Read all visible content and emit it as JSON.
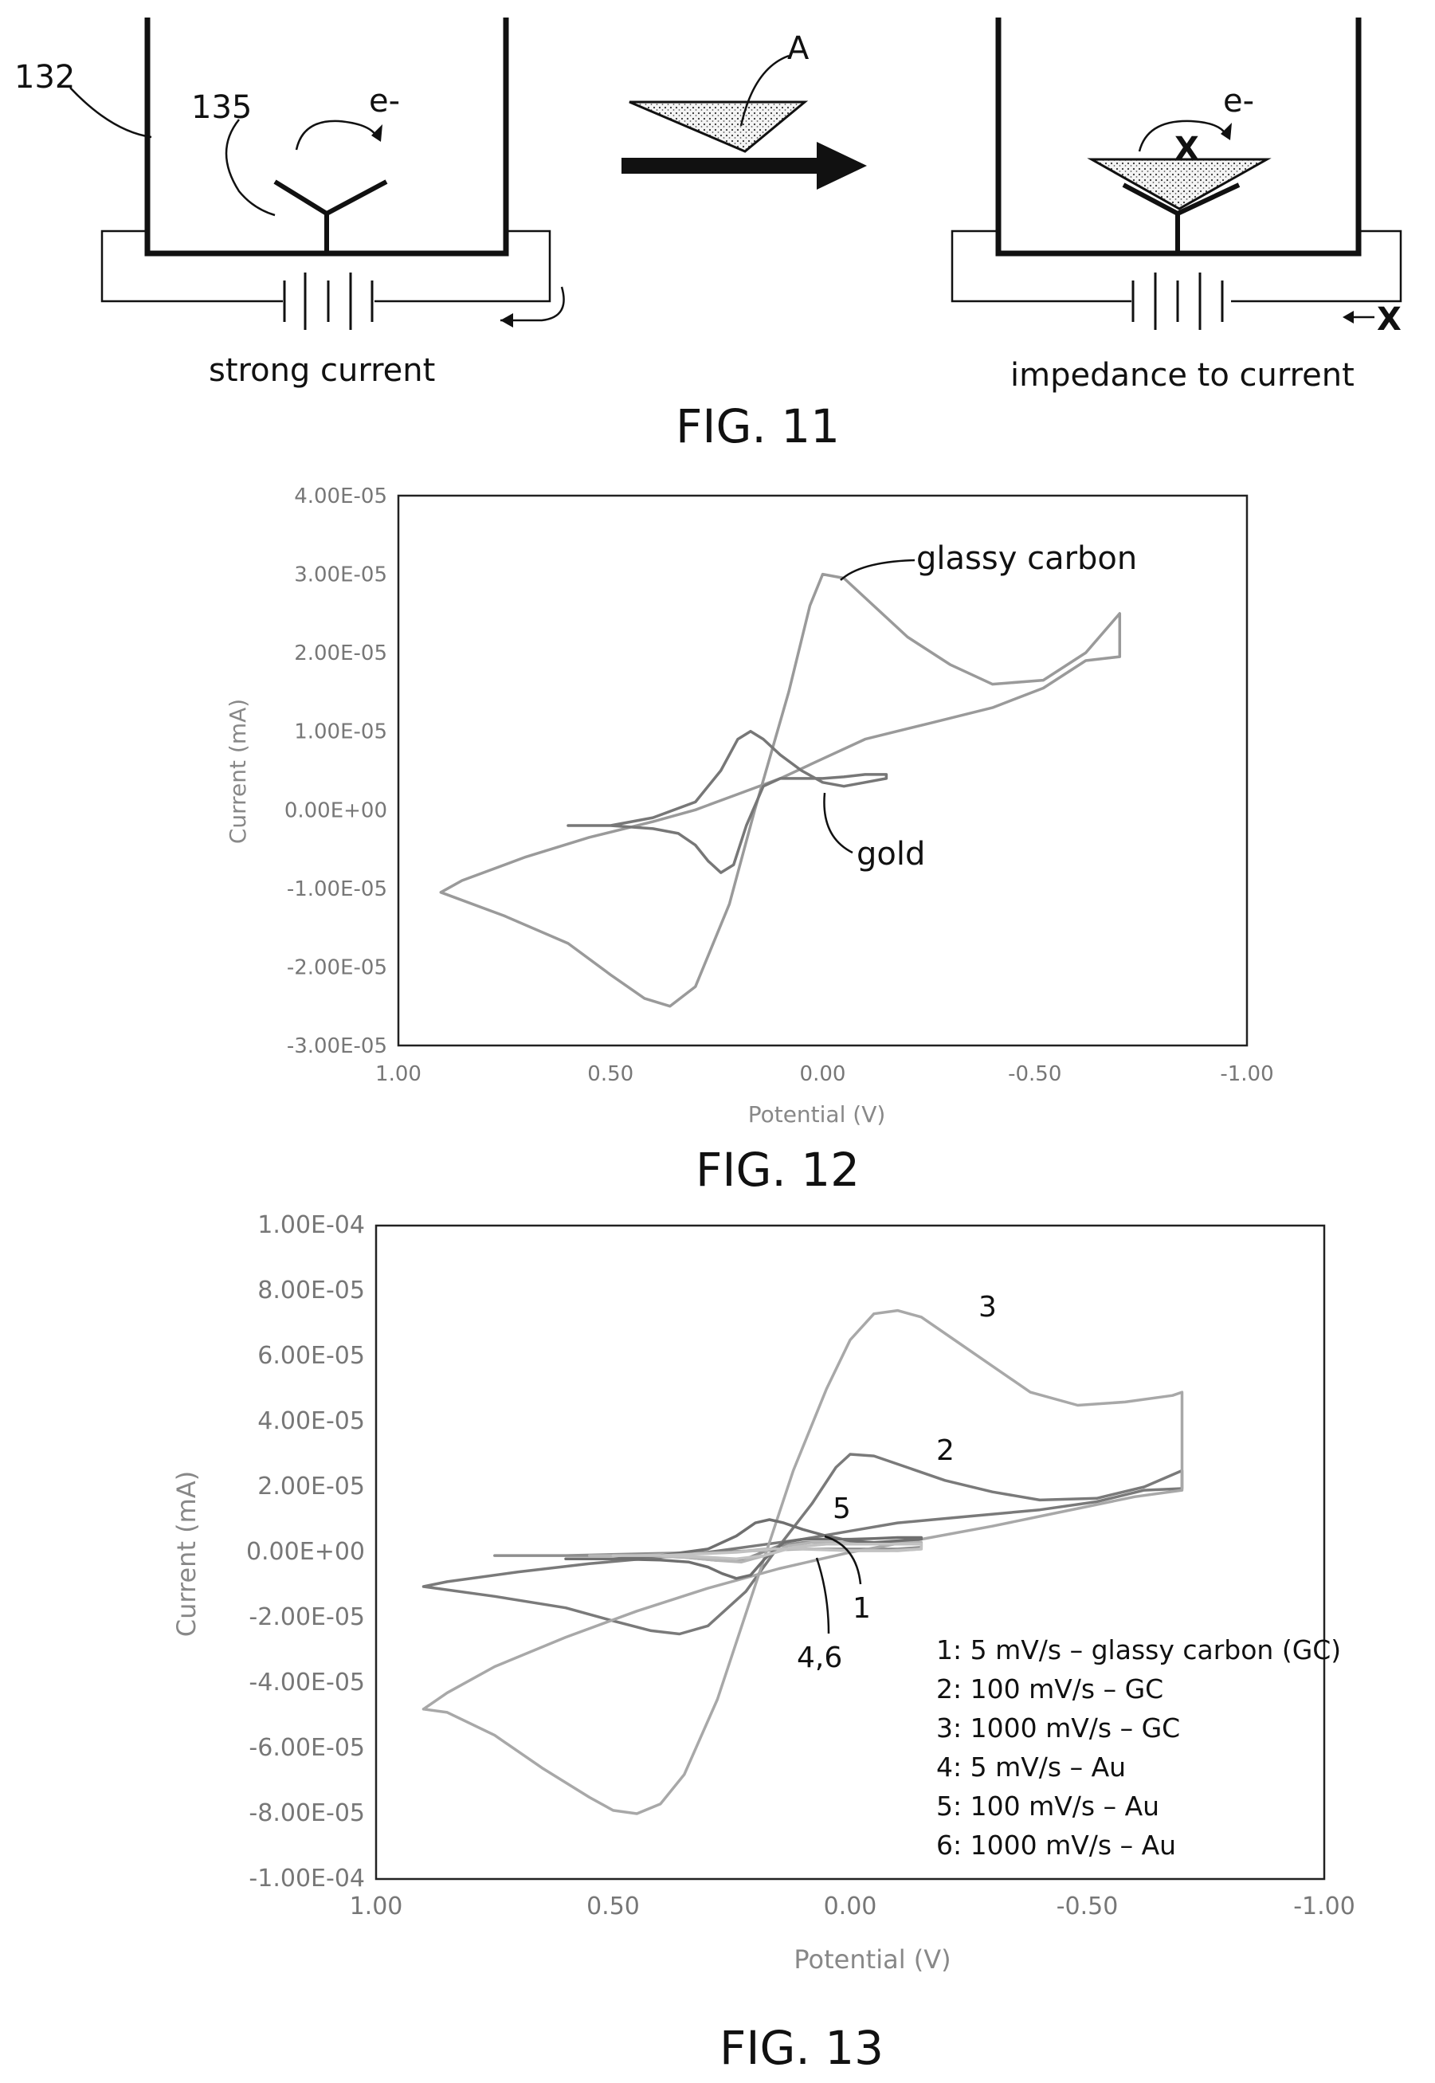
{
  "fig11": {
    "title": "FIG. 11",
    "label_132": "132",
    "label_135": "135",
    "label_A": "A",
    "electron_left": "e-",
    "electron_right": "e-",
    "blocked_mark_top": "X",
    "blocked_mark_bottom": "X",
    "caption_left": "strong current",
    "caption_right": "impedance to current"
  },
  "fig12": {
    "title": "FIG. 12",
    "ylabel": "Current (mA)",
    "xlabel": "Potential (V)",
    "yticks": [
      "4.00E-05",
      "3.00E-05",
      "2.00E-05",
      "1.00E-05",
      "0.00E+00",
      "-1.00E-05",
      "-2.00E-05",
      "-3.00E-05"
    ],
    "xticks": [
      "1.00",
      "0.50",
      "0.00",
      "-0.50",
      "-1.00"
    ],
    "annotation_gc": "glassy carbon",
    "annotation_gold": "gold"
  },
  "fig13": {
    "title": "FIG. 13",
    "ylabel": "Current (mA)",
    "xlabel": "Potential (V)",
    "yticks": [
      "1.00E-04",
      "8.00E-05",
      "6.00E-05",
      "4.00E-05",
      "2.00E-05",
      "0.00E+00",
      "-2.00E-05",
      "-4.00E-05",
      "-6.00E-05",
      "-8.00E-05",
      "-1.00E-04"
    ],
    "xticks": [
      "1.00",
      "0.50",
      "0.00",
      "-0.50",
      "-1.00"
    ],
    "curve_labels": [
      "3",
      "2",
      "5",
      "1",
      "4,6"
    ],
    "legend": [
      "1: 5 mV/s – glassy carbon (GC)",
      "2: 100 mV/s – GC",
      "3: 1000 mV/s – GC",
      "4: 5 mV/s – Au",
      "5: 100 mV/s – Au",
      "6: 1000 mV/s – Au"
    ]
  },
  "chart_data": [
    {
      "type": "line",
      "xlabel": "Potential (V)",
      "ylabel": "Current (mA)",
      "xlim": [
        1.0,
        -1.0
      ],
      "ylim": [
        -3e-05,
        4e-05
      ],
      "grid": false,
      "series": [
        {
          "name": "glassy carbon",
          "color": "#9a9a9a",
          "x": [
            0.9,
            0.75,
            0.6,
            0.5,
            0.42,
            0.36,
            0.3,
            0.22,
            0.16,
            0.08,
            0.03,
            0.0,
            -0.05,
            -0.12,
            -0.2,
            -0.3,
            -0.4,
            -0.52,
            -0.62,
            -0.7,
            -0.7,
            -0.62,
            -0.52,
            -0.4,
            -0.25,
            -0.1,
            0.0,
            0.1,
            0.2,
            0.3,
            0.4,
            0.55,
            0.7,
            0.85,
            0.9
          ],
          "y": [
            -1.05e-05,
            -1.35e-05,
            -1.7e-05,
            -2.1e-05,
            -2.4e-05,
            -2.5e-05,
            -2.25e-05,
            -1.2e-05,
            0.0,
            1.5e-05,
            2.6e-05,
            3e-05,
            2.95e-05,
            2.6e-05,
            2.2e-05,
            1.85e-05,
            1.6e-05,
            1.65e-05,
            2e-05,
            2.5e-05,
            1.95e-05,
            1.9e-05,
            1.55e-05,
            1.3e-05,
            1.1e-05,
            9e-06,
            6.5e-06,
            4e-06,
            2e-06,
            0.0,
            -1.5e-06,
            -3.5e-06,
            -6e-06,
            -9e-06,
            -1.05e-05
          ]
        },
        {
          "name": "gold",
          "color": "#777777",
          "x": [
            0.6,
            0.5,
            0.4,
            0.34,
            0.3,
            0.27,
            0.24,
            0.21,
            0.18,
            0.14,
            0.1,
            0.05,
            0.0,
            -0.05,
            -0.1,
            -0.15,
            -0.15,
            -0.1,
            -0.05,
            0.0,
            0.05,
            0.1,
            0.14,
            0.17,
            0.2,
            0.24,
            0.3,
            0.4,
            0.5,
            0.6
          ],
          "y": [
            -2e-06,
            -2e-06,
            -2.4e-06,
            -3e-06,
            -4.5e-06,
            -6.5e-06,
            -8e-06,
            -7e-06,
            -2e-06,
            3e-06,
            4e-06,
            4e-06,
            4e-06,
            4.2e-06,
            4.5e-06,
            4.5e-06,
            4e-06,
            3.5e-06,
            3e-06,
            3.5e-06,
            5e-06,
            7e-06,
            9e-06,
            1e-05,
            9e-06,
            5e-06,
            1e-06,
            -1e-06,
            -2e-06,
            -2e-06
          ]
        }
      ]
    },
    {
      "type": "line",
      "xlabel": "Potential (V)",
      "ylabel": "Current (mA)",
      "xlim": [
        1.0,
        -1.0
      ],
      "ylim": [
        -0.0001,
        0.0001
      ],
      "grid": false,
      "series": [
        {
          "name": "1",
          "color": "#8f8f8f",
          "x": [
            0.75,
            0.6,
            0.45,
            0.35,
            0.28,
            0.22,
            0.15,
            0.1,
            0.05,
            0.0,
            -0.05,
            -0.1,
            -0.15,
            -0.15,
            -0.1,
            0.0,
            0.1,
            0.2,
            0.3,
            0.45,
            0.6,
            0.75
          ],
          "y": [
            -1e-06,
            -1e-06,
            -1e-06,
            -1.5e-06,
            -2.5e-06,
            -2e-06,
            2e-06,
            3e-06,
            3e-06,
            2.5e-06,
            2.5e-06,
            3e-06,
            3e-06,
            1.5e-06,
            1e-06,
            1e-06,
            1e-06,
            5e-07,
            0.0,
            -5e-07,
            -1e-06,
            -1e-06
          ]
        },
        {
          "name": "2",
          "color": "#7a7a7a",
          "x": [
            0.9,
            0.75,
            0.6,
            0.5,
            0.42,
            0.36,
            0.3,
            0.22,
            0.16,
            0.08,
            0.03,
            0.0,
            -0.05,
            -0.12,
            -0.2,
            -0.3,
            -0.4,
            -0.52,
            -0.62,
            -0.7,
            -0.7,
            -0.62,
            -0.52,
            -0.4,
            -0.25,
            -0.1,
            0.0,
            0.1,
            0.2,
            0.3,
            0.4,
            0.55,
            0.7,
            0.85,
            0.9
          ],
          "y": [
            -1.05e-05,
            -1.35e-05,
            -1.7e-05,
            -2.1e-05,
            -2.4e-05,
            -2.5e-05,
            -2.25e-05,
            -1.2e-05,
            0.0,
            1.5e-05,
            2.6e-05,
            3e-05,
            2.95e-05,
            2.6e-05,
            2.2e-05,
            1.85e-05,
            1.6e-05,
            1.65e-05,
            2e-05,
            2.5e-05,
            1.95e-05,
            1.9e-05,
            1.55e-05,
            1.3e-05,
            1.1e-05,
            9e-06,
            6.5e-06,
            4e-06,
            2e-06,
            0.0,
            -1.5e-06,
            -3.5e-06,
            -6e-06,
            -9e-06,
            -1.05e-05
          ]
        },
        {
          "name": "3",
          "color": "#a8a8a8",
          "x": [
            0.9,
            0.85,
            0.75,
            0.65,
            0.55,
            0.5,
            0.45,
            0.4,
            0.35,
            0.28,
            0.2,
            0.12,
            0.05,
            0.0,
            -0.05,
            -0.1,
            -0.15,
            -0.22,
            -0.3,
            -0.38,
            -0.48,
            -0.58,
            -0.68,
            -0.7,
            -0.7,
            -0.6,
            -0.5,
            -0.4,
            -0.3,
            -0.15,
            0.0,
            0.15,
            0.3,
            0.45,
            0.6,
            0.75,
            0.85,
            0.9
          ],
          "y": [
            -4.8e-05,
            -4.9e-05,
            -5.6e-05,
            -6.6e-05,
            -7.5e-05,
            -7.9e-05,
            -8e-05,
            -7.7e-05,
            -6.8e-05,
            -4.5e-05,
            -1e-05,
            2.5e-05,
            5e-05,
            6.5e-05,
            7.3e-05,
            7.4e-05,
            7.2e-05,
            6.5e-05,
            5.7e-05,
            4.9e-05,
            4.5e-05,
            4.6e-05,
            4.8e-05,
            4.9e-05,
            1.9e-05,
            1.7e-05,
            1.4e-05,
            1.1e-05,
            8e-06,
            4e-06,
            0.0,
            -5e-06,
            -1.1e-05,
            -1.8e-05,
            -2.6e-05,
            -3.5e-05,
            -4.3e-05,
            -4.8e-05
          ]
        },
        {
          "name": "4",
          "color": "#b5b5b5",
          "x": [
            0.55,
            0.45,
            0.35,
            0.28,
            0.23,
            0.18,
            0.13,
            0.08,
            0.0,
            -0.1,
            -0.15,
            -0.15,
            -0.1,
            0.0,
            0.1,
            0.18,
            0.25,
            0.35,
            0.45,
            0.55
          ],
          "y": [
            -1e-06,
            -1e-06,
            -1.5e-06,
            -2.5e-06,
            -3e-06,
            -1e-06,
            2e-06,
            3e-06,
            3e-06,
            3e-06,
            3e-06,
            1e-06,
            5e-07,
            5e-07,
            1e-06,
            1e-06,
            0.0,
            -5e-07,
            -1e-06,
            -1e-06
          ]
        },
        {
          "name": "5",
          "color": "#6f6f6f",
          "x": [
            0.6,
            0.5,
            0.4,
            0.34,
            0.3,
            0.27,
            0.24,
            0.21,
            0.18,
            0.14,
            0.1,
            0.05,
            0.0,
            -0.05,
            -0.1,
            -0.15,
            -0.15,
            -0.1,
            -0.05,
            0.0,
            0.05,
            0.1,
            0.14,
            0.17,
            0.2,
            0.24,
            0.3,
            0.4,
            0.5,
            0.6
          ],
          "y": [
            -2e-06,
            -2e-06,
            -2.4e-06,
            -3e-06,
            -4.5e-06,
            -6.5e-06,
            -8e-06,
            -7e-06,
            -2e-06,
            3e-06,
            4e-06,
            4e-06,
            4e-06,
            4.2e-06,
            4.5e-06,
            4.5e-06,
            4e-06,
            3.5e-06,
            3e-06,
            3.5e-06,
            5e-06,
            7e-06,
            9e-06,
            1e-05,
            9e-06,
            5e-06,
            1e-06,
            -1e-06,
            -2e-06,
            -2e-06
          ]
        },
        {
          "name": "6",
          "color": "#c2c2c2",
          "x": [
            0.5,
            0.4,
            0.3,
            0.24,
            0.18,
            0.12,
            0.05,
            0.0,
            -0.08,
            -0.15,
            -0.15,
            -0.08,
            0.0,
            0.08,
            0.16,
            0.24,
            0.32,
            0.4,
            0.5
          ],
          "y": [
            -1e-06,
            -1e-06,
            -1.5e-06,
            -2e-06,
            -1e-06,
            1.5e-06,
            2.5e-06,
            2.5e-06,
            2.5e-06,
            2.5e-06,
            1e-06,
            5e-07,
            5e-07,
            1e-06,
            1e-06,
            0.0,
            -5e-07,
            -1e-06,
            -1e-06
          ]
        }
      ]
    }
  ]
}
